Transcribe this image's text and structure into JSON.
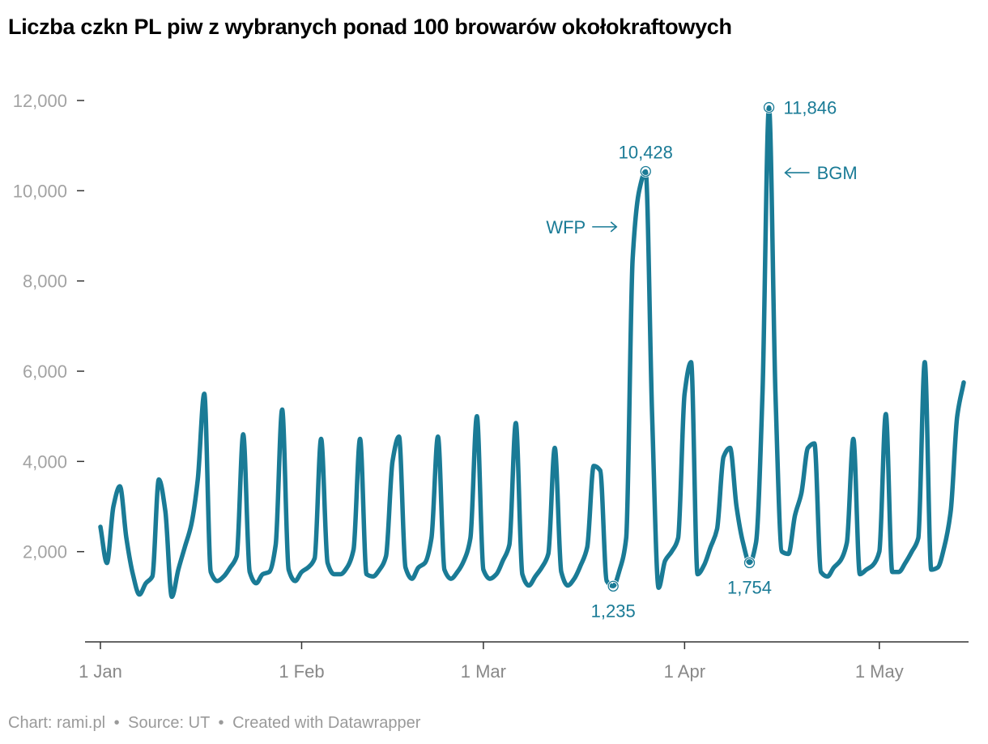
{
  "chart_data": {
    "type": "line",
    "title": "Liczba czkn PL piw z wybranych ponad 100 browarów okołokraftowych",
    "xlabel": "",
    "ylabel": "",
    "ylim": [
      0,
      12000
    ],
    "y_ticks": [
      2000,
      4000,
      6000,
      8000,
      10000,
      12000
    ],
    "y_tick_labels": [
      "2,000",
      "4,000",
      "6,000",
      "8,000",
      "10,000",
      "12,000"
    ],
    "x_tick_labels": [
      "1 Jan",
      "1 Feb",
      "1 Mar",
      "1 Apr",
      "1 May"
    ],
    "x_tick_dates": [
      "2021-01-01",
      "2021-02-01",
      "2021-03-01",
      "2021-04-01",
      "2021-05-01"
    ],
    "grid": false,
    "line_color": "#1a7b96",
    "series": [
      {
        "values": [
          [
            "2021-01-01",
            2550
          ],
          [
            "2021-01-02",
            1750
          ],
          [
            "2021-01-03",
            3000
          ],
          [
            "2021-01-04",
            3450
          ],
          [
            "2021-01-05",
            2300
          ],
          [
            "2021-01-06",
            1500
          ],
          [
            "2021-01-07",
            1050
          ],
          [
            "2021-01-08",
            1300
          ],
          [
            "2021-01-09",
            1450
          ],
          [
            "2021-01-10",
            3600
          ],
          [
            "2021-01-11",
            2900
          ],
          [
            "2021-01-12",
            1000
          ],
          [
            "2021-01-13",
            1600
          ],
          [
            "2021-01-14",
            2100
          ],
          [
            "2021-01-15",
            2600
          ],
          [
            "2021-01-16",
            3600
          ],
          [
            "2021-01-17",
            5500
          ],
          [
            "2021-01-18",
            1550
          ],
          [
            "2021-01-19",
            1350
          ],
          [
            "2021-01-20",
            1450
          ],
          [
            "2021-01-21",
            1650
          ],
          [
            "2021-01-22",
            1900
          ],
          [
            "2021-01-23",
            4600
          ],
          [
            "2021-01-24",
            1550
          ],
          [
            "2021-01-25",
            1300
          ],
          [
            "2021-01-26",
            1500
          ],
          [
            "2021-01-27",
            1550
          ],
          [
            "2021-01-28",
            2150
          ],
          [
            "2021-01-29",
            5150
          ],
          [
            "2021-01-30",
            1600
          ],
          [
            "2021-01-31",
            1350
          ],
          [
            "2021-02-01",
            1550
          ],
          [
            "2021-02-02",
            1650
          ],
          [
            "2021-02-03",
            1850
          ],
          [
            "2021-02-04",
            4500
          ],
          [
            "2021-02-05",
            1750
          ],
          [
            "2021-02-06",
            1500
          ],
          [
            "2021-02-07",
            1500
          ],
          [
            "2021-02-08",
            1650
          ],
          [
            "2021-02-09",
            2050
          ],
          [
            "2021-02-10",
            4500
          ],
          [
            "2021-02-11",
            1500
          ],
          [
            "2021-02-12",
            1450
          ],
          [
            "2021-02-13",
            1600
          ],
          [
            "2021-02-14",
            1900
          ],
          [
            "2021-02-15",
            4000
          ],
          [
            "2021-02-16",
            4550
          ],
          [
            "2021-02-17",
            1650
          ],
          [
            "2021-02-18",
            1400
          ],
          [
            "2021-02-19",
            1650
          ],
          [
            "2021-02-20",
            1750
          ],
          [
            "2021-02-21",
            2300
          ],
          [
            "2021-02-22",
            4550
          ],
          [
            "2021-02-23",
            1600
          ],
          [
            "2021-02-24",
            1400
          ],
          [
            "2021-02-25",
            1550
          ],
          [
            "2021-02-26",
            1800
          ],
          [
            "2021-02-27",
            2300
          ],
          [
            "2021-02-28",
            5000
          ],
          [
            "2021-03-01",
            1600
          ],
          [
            "2021-03-02",
            1400
          ],
          [
            "2021-03-03",
            1500
          ],
          [
            "2021-03-04",
            1800
          ],
          [
            "2021-03-05",
            2150
          ],
          [
            "2021-03-06",
            4850
          ],
          [
            "2021-03-07",
            1500
          ],
          [
            "2021-03-08",
            1250
          ],
          [
            "2021-03-09",
            1450
          ],
          [
            "2021-03-10",
            1650
          ],
          [
            "2021-03-11",
            1950
          ],
          [
            "2021-03-12",
            4300
          ],
          [
            "2021-03-13",
            1550
          ],
          [
            "2021-03-14",
            1250
          ],
          [
            "2021-03-15",
            1400
          ],
          [
            "2021-03-16",
            1700
          ],
          [
            "2021-03-17",
            2100
          ],
          [
            "2021-03-18",
            3900
          ],
          [
            "2021-03-19",
            3800
          ],
          [
            "2021-03-20",
            1350
          ],
          [
            "2021-03-21",
            1235
          ],
          [
            "2021-03-22",
            1600
          ],
          [
            "2021-03-23",
            2300
          ],
          [
            "2021-03-24",
            8500
          ],
          [
            "2021-03-25",
            10000
          ],
          [
            "2021-03-26",
            10428
          ],
          [
            "2021-03-27",
            5000
          ],
          [
            "2021-03-28",
            1200
          ],
          [
            "2021-03-29",
            1800
          ],
          [
            "2021-03-30",
            2000
          ],
          [
            "2021-03-31",
            2300
          ],
          [
            "2021-04-01",
            5500
          ],
          [
            "2021-04-02",
            6200
          ],
          [
            "2021-04-03",
            1500
          ],
          [
            "2021-04-04",
            1700
          ],
          [
            "2021-04-05",
            2100
          ],
          [
            "2021-04-06",
            2500
          ],
          [
            "2021-04-07",
            4100
          ],
          [
            "2021-04-08",
            4300
          ],
          [
            "2021-04-09",
            3000
          ],
          [
            "2021-04-10",
            2200
          ],
          [
            "2021-04-11",
            1754
          ],
          [
            "2021-04-12",
            2200
          ],
          [
            "2021-04-13",
            5500
          ],
          [
            "2021-04-14",
            11846
          ],
          [
            "2021-04-15",
            5500
          ],
          [
            "2021-04-16",
            2000
          ],
          [
            "2021-04-17",
            1950
          ],
          [
            "2021-04-18",
            2800
          ],
          [
            "2021-04-19",
            3300
          ],
          [
            "2021-04-20",
            4300
          ],
          [
            "2021-04-21",
            4400
          ],
          [
            "2021-04-22",
            1550
          ],
          [
            "2021-04-23",
            1450
          ],
          [
            "2021-04-24",
            1650
          ],
          [
            "2021-04-25",
            1800
          ],
          [
            "2021-04-26",
            2200
          ],
          [
            "2021-04-27",
            4500
          ],
          [
            "2021-04-28",
            1500
          ],
          [
            "2021-04-29",
            1600
          ],
          [
            "2021-04-30",
            1700
          ],
          [
            "2021-05-01",
            2000
          ],
          [
            "2021-05-02",
            5050
          ],
          [
            "2021-05-03",
            1550
          ],
          [
            "2021-05-04",
            1550
          ],
          [
            "2021-05-05",
            1750
          ],
          [
            "2021-05-06",
            2000
          ],
          [
            "2021-05-07",
            2300
          ],
          [
            "2021-05-08",
            6200
          ],
          [
            "2021-05-09",
            1600
          ],
          [
            "2021-05-10",
            1650
          ],
          [
            "2021-05-11",
            2100
          ],
          [
            "2021-05-12",
            2900
          ],
          [
            "2021-05-13",
            5000
          ],
          [
            "2021-05-14",
            5750
          ]
        ]
      }
    ],
    "annotations": [
      {
        "date": "2021-03-21",
        "value": 1235,
        "label": "1,235",
        "position": "below"
      },
      {
        "date": "2021-03-26",
        "value": 10428,
        "label": "10,428",
        "position": "above"
      },
      {
        "date": "2021-04-11",
        "value": 1754,
        "label": "1,754",
        "position": "below"
      },
      {
        "date": "2021-04-14",
        "value": 11846,
        "label": "11,846",
        "position": "right"
      }
    ],
    "text_annotations": [
      {
        "label": "WFP",
        "arrow": "→",
        "near_date": "2021-03-25",
        "value": 9200
      },
      {
        "label": "BGM",
        "arrow": "←",
        "near_date": "2021-04-15",
        "value": 10400
      }
    ]
  },
  "footer": {
    "chart_credit": "Chart: rami.pl",
    "separator": "•",
    "source": "Source: UT",
    "created_with": "Created with Datawrapper"
  }
}
